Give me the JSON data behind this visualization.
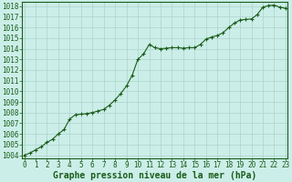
{
  "x": [
    0,
    0.5,
    1,
    1.5,
    2,
    2.5,
    3,
    3.5,
    4,
    4.5,
    5,
    5.5,
    6,
    6.5,
    7,
    7.5,
    8,
    8.5,
    9,
    9.5,
    10,
    10.5,
    11,
    11.5,
    12,
    12.5,
    13,
    13.5,
    14,
    14.5,
    15,
    15.5,
    16,
    16.5,
    17,
    17.5,
    18,
    18.5,
    19,
    19.5,
    20,
    20.5,
    21,
    21.5,
    22,
    22.5,
    23
  ],
  "y": [
    1004.0,
    1004.2,
    1004.5,
    1004.8,
    1005.2,
    1005.5,
    1006.0,
    1006.4,
    1007.4,
    1007.8,
    1007.85,
    1007.9,
    1008.0,
    1008.15,
    1008.3,
    1008.7,
    1009.2,
    1009.8,
    1010.5,
    1011.5,
    1013.0,
    1013.5,
    1014.4,
    1014.1,
    1014.0,
    1014.05,
    1014.1,
    1014.1,
    1014.05,
    1014.1,
    1014.1,
    1014.4,
    1014.9,
    1015.1,
    1015.25,
    1015.5,
    1016.0,
    1016.4,
    1016.7,
    1016.75,
    1016.8,
    1017.2,
    1017.9,
    1018.05,
    1018.1,
    1017.9,
    1017.8
  ],
  "xlim": [
    0,
    23
  ],
  "ylim": [
    1004,
    1018
  ],
  "yticks": [
    1004,
    1005,
    1006,
    1007,
    1008,
    1009,
    1010,
    1011,
    1012,
    1013,
    1014,
    1015,
    1016,
    1017,
    1018
  ],
  "xticks": [
    0,
    1,
    2,
    3,
    4,
    5,
    6,
    7,
    8,
    9,
    10,
    11,
    12,
    13,
    14,
    15,
    16,
    17,
    18,
    19,
    20,
    21,
    22,
    23
  ],
  "xlabel": "Graphe pression niveau de la mer (hPa)",
  "line_color": "#1a5c1a",
  "marker_color": "#1a5c1a",
  "bg_color": "#cceee8",
  "grid_color": "#aad4cc",
  "text_color": "#1a5c1a",
  "xlabel_fontsize": 7,
  "ytick_fontsize": 5.5,
  "xtick_fontsize": 5.5
}
